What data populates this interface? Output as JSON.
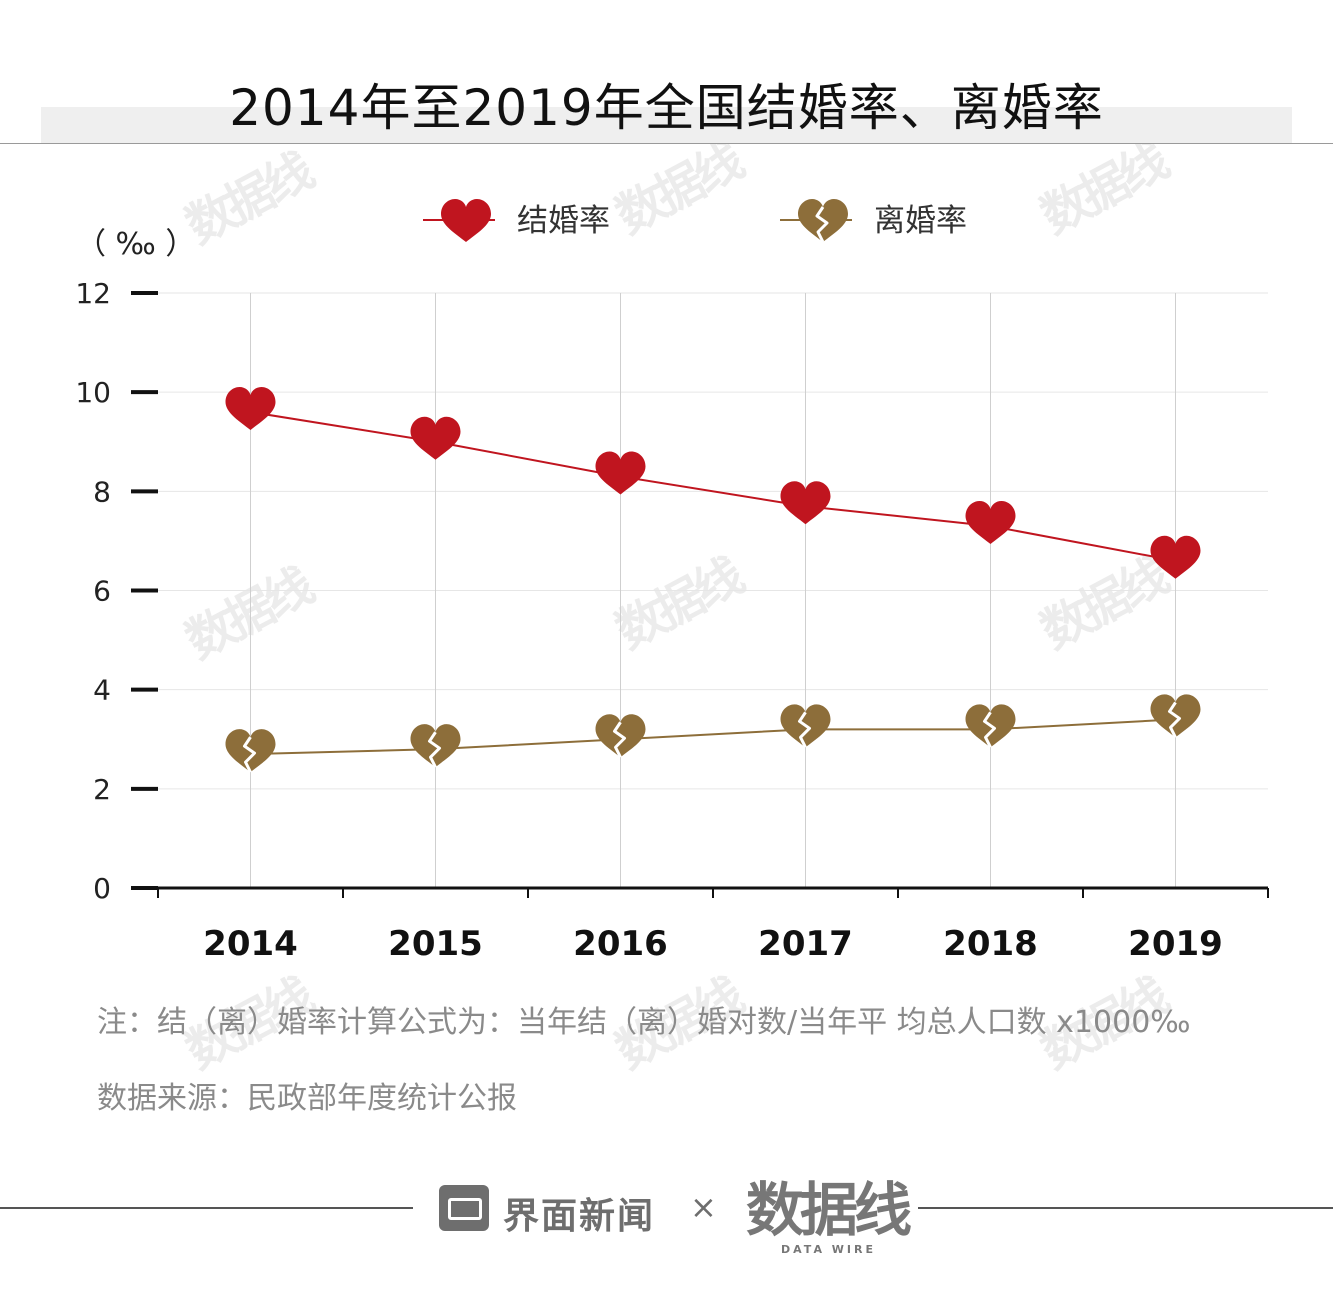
{
  "title": "2014年至2019年全国结婚率、离婚率",
  "chart_data": {
    "type": "line",
    "title": "2014年至2019年全国结婚率、离婚率",
    "unit_label": "（ ‰ ）",
    "x": [
      "2014",
      "2015",
      "2016",
      "2017",
      "2018",
      "2019"
    ],
    "ylim": [
      0,
      12
    ],
    "yticks": [
      0,
      2,
      4,
      6,
      8,
      10,
      12
    ],
    "grid": true,
    "legend_position": "top-center",
    "series": [
      {
        "name": "结婚率",
        "values": [
          9.6,
          9.0,
          8.3,
          7.7,
          7.3,
          6.6
        ],
        "color": "#c0151f",
        "marker": "heart-icon"
      },
      {
        "name": "离婚率",
        "values": [
          2.7,
          2.8,
          3.0,
          3.2,
          3.2,
          3.4
        ],
        "color": "#8d6e3a",
        "marker": "broken-heart-icon"
      }
    ]
  },
  "note": "注：结（离）婚率计算公式为：当年结（离）婚对数/当年平 均总人口数 x1000‰",
  "source": "数据来源：民政部年度统计公报",
  "footer": {
    "brand": "界面新闻",
    "separator": "×",
    "partner": "数据线",
    "partner_sub": "DATA WIRE"
  },
  "watermark": "数据线"
}
